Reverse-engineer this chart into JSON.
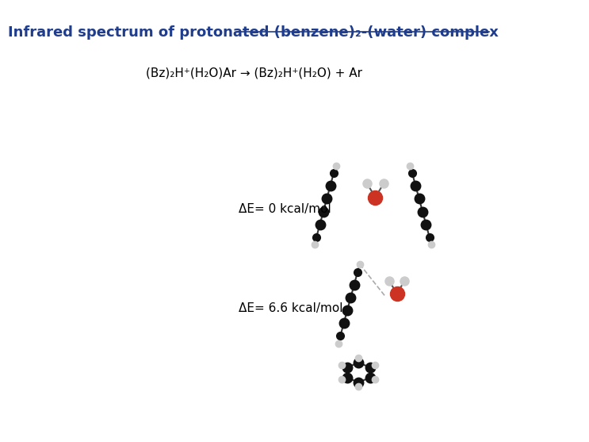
{
  "title": "Infrared spectrum of protonated (benzene)₂-(water) complex",
  "reaction_line": "(Bz)₂H⁺(H₂O)Ar → (Bz)₂H⁺(H₂O) + Ar",
  "label1": "ΔE= 0 kcal/mol",
  "label2": "ΔE= 6.6 kcal/mol",
  "bg_color": "#ffffff",
  "title_color": "#1f3d8c",
  "text_color": "#000000",
  "title_fontsize": 13,
  "reaction_fontsize": 11,
  "label_fontsize": 11
}
